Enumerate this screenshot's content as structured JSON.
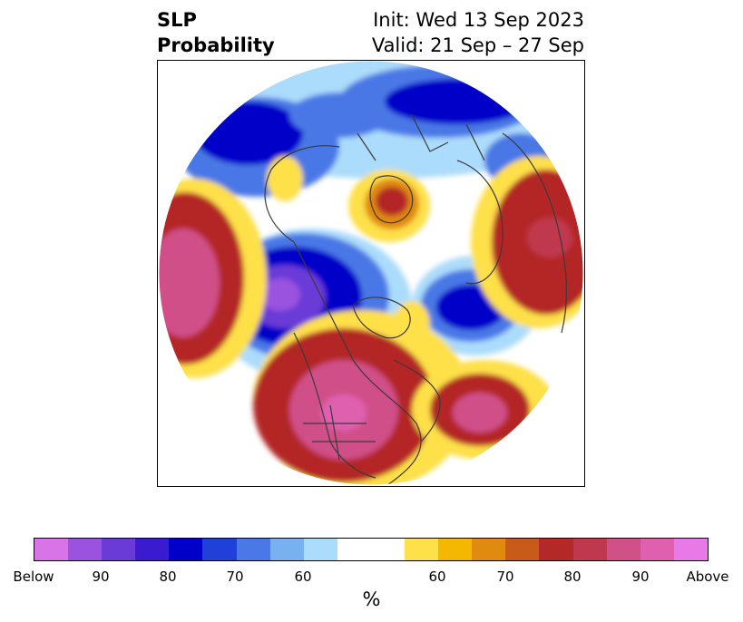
{
  "title": {
    "left_line1": "SLP",
    "left_line2": "Probability",
    "right_line1": "Init: Wed 13 Sep 2023",
    "right_line2": "Valid: 21 Sep – 27 Sep"
  },
  "colorbar": {
    "colors": [
      "#d774e7",
      "#9a53df",
      "#6b3bd7",
      "#3b1bd0",
      "#0000c8",
      "#2040d8",
      "#4a78e6",
      "#78b0f0",
      "#acdcfb",
      "#ffffff",
      "#ffffff",
      "#fee04a",
      "#f5b800",
      "#e08a10",
      "#c85a1a",
      "#b42828",
      "#c0384e",
      "#d05088",
      "#e060b0",
      "#e87ae8"
    ],
    "tick_labels": [
      "Below",
      "90",
      "80",
      "70",
      "60",
      "60",
      "70",
      "80",
      "90",
      "Above"
    ],
    "unit_label": "%"
  },
  "map": {
    "type": "polar-stereographic",
    "variable": "sea-level-pressure-probability",
    "features": [
      "coastlines",
      "country-borders",
      "us-state-borders"
    ]
  }
}
